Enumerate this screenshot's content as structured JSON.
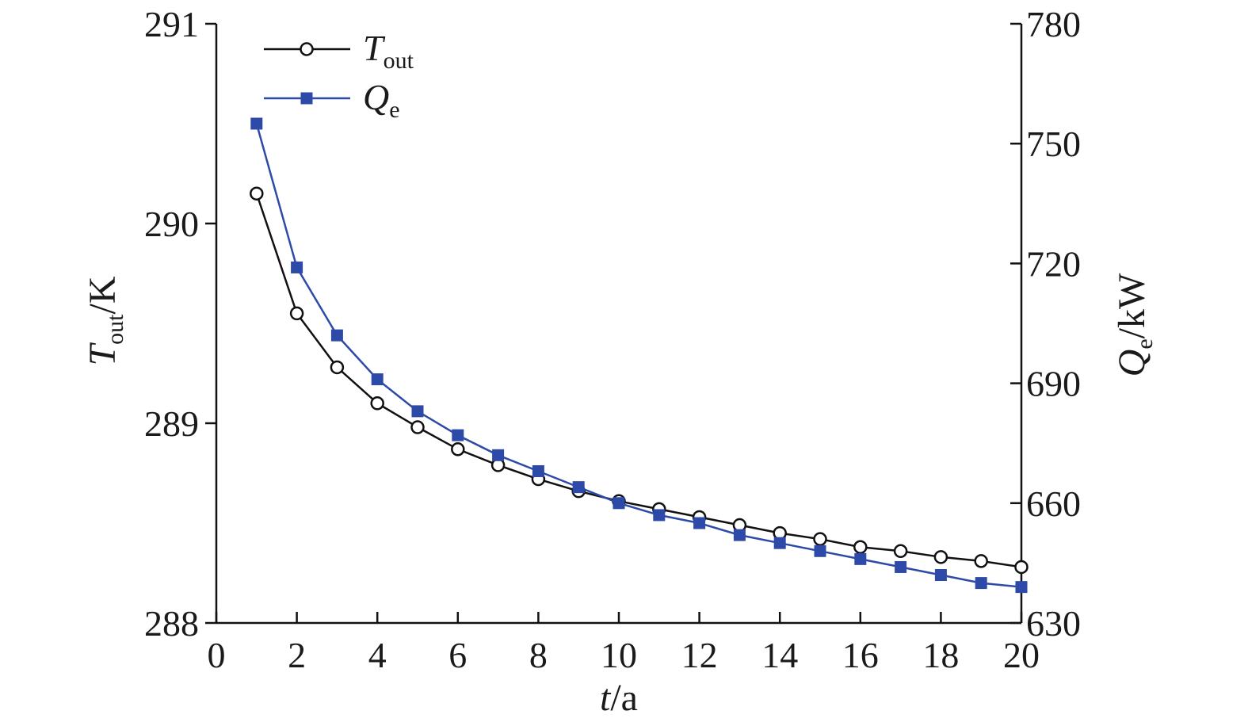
{
  "chart_data": {
    "type": "line",
    "xlabel": {
      "symbol": "t",
      "unit": "/a"
    },
    "ylabel_left": {
      "symbol": "T",
      "sub": "out",
      "unit": "/K"
    },
    "ylabel_right": {
      "symbol": "Q",
      "sub": "e",
      "unit": "/kW"
    },
    "x_ticks": [
      "0",
      "2",
      "4",
      "6",
      "8",
      "10",
      "12",
      "14",
      "16",
      "18",
      "20"
    ],
    "y_left_ticks": [
      "288",
      "289",
      "290",
      "291"
    ],
    "y_right_ticks": [
      "630",
      "660",
      "690",
      "720",
      "750",
      "780"
    ],
    "xlim": [
      0,
      20
    ],
    "ylim_left": [
      288,
      291
    ],
    "ylim_right": [
      630,
      780
    ],
    "grid": false,
    "legend_position": "top-left",
    "x": [
      1,
      2,
      3,
      4,
      5,
      6,
      7,
      8,
      9,
      10,
      11,
      12,
      13,
      14,
      15,
      16,
      17,
      18,
      19,
      20
    ],
    "series": [
      {
        "name": "T",
        "name_sub": "out",
        "axis": "left",
        "marker": "open-circle",
        "color": "#111111",
        "values": [
          290.15,
          289.55,
          289.28,
          289.1,
          288.98,
          288.87,
          288.79,
          288.72,
          288.66,
          288.61,
          288.57,
          288.53,
          288.49,
          288.45,
          288.42,
          288.38,
          288.36,
          288.33,
          288.31,
          288.28
        ]
      },
      {
        "name": "Q",
        "name_sub": "e",
        "axis": "right",
        "marker": "filled-square",
        "color": "#2e4aa8",
        "values": [
          755,
          719,
          702,
          691,
          683,
          677,
          672,
          668,
          664,
          660,
          657,
          655,
          652,
          650,
          648,
          646,
          644,
          642,
          640,
          639
        ]
      }
    ]
  }
}
